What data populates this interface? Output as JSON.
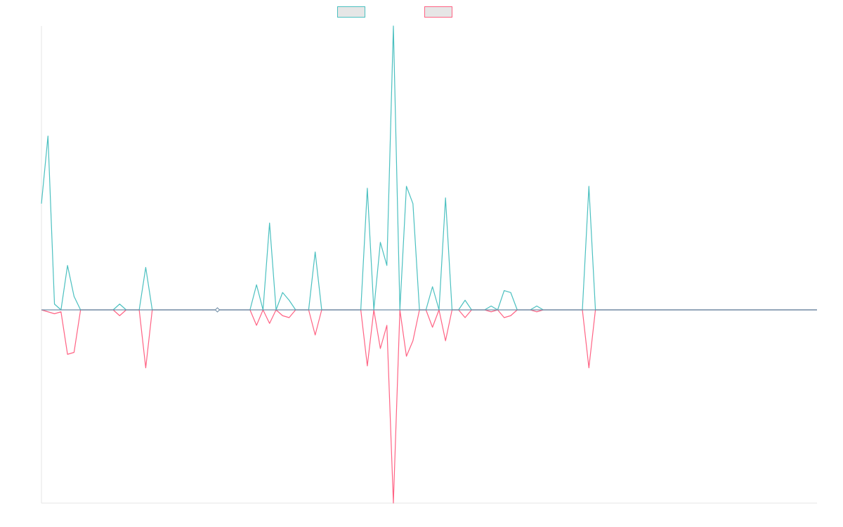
{
  "chart_data": {
    "type": "line",
    "title": "",
    "xlabel": "",
    "ylabel": "",
    "ylim": [
      -1,
      0.82
    ],
    "x_count": 120,
    "grid": false,
    "legend": "top",
    "series": [
      {
        "color": "#4bc0c0",
        "values": [
          0.55,
          0.9,
          0.03,
          0.0,
          0.23,
          0.07,
          0.0,
          0.0,
          0.0,
          0.0,
          0.0,
          0.0,
          0.03,
          0.0,
          0.0,
          0.0,
          0.22,
          0.0,
          0.0,
          0.0,
          0.0,
          0.0,
          0.0,
          0.0,
          0.0,
          0.0,
          0.0,
          0.0,
          0.0,
          0.0,
          0.0,
          0.0,
          0.0,
          0.13,
          0.0,
          0.45,
          0.0,
          0.09,
          0.05,
          0.0,
          0.0,
          0.0,
          0.3,
          0.0,
          0.0,
          0.0,
          0.0,
          0.0,
          0.0,
          0.0,
          0.63,
          0.0,
          0.35,
          0.23,
          1.47,
          0.0,
          0.64,
          0.55,
          0.0,
          0.0,
          0.12,
          0.0,
          0.58,
          0.0,
          0.0,
          0.05,
          0.0,
          0.0,
          0.0,
          0.02,
          0.0,
          0.1,
          0.09,
          0.0,
          0.0,
          0.0,
          0.02,
          0.0,
          0.0,
          0.0,
          0.0,
          0.0,
          0.0,
          0.0,
          0.64,
          0.0,
          0.0,
          0.0,
          0.0,
          0.0,
          0.0,
          0.0,
          0.0,
          0.0,
          0.0,
          0.0,
          0.0,
          0.0,
          0.0,
          0.0,
          0.0,
          0.0,
          0.0,
          0.0,
          0.0,
          0.0,
          0.0,
          0.0,
          0.0,
          0.0,
          0.0,
          0.0,
          0.0,
          0.0,
          0.0,
          0.0,
          0.0,
          0.0,
          0.0,
          0.0
        ]
      },
      {
        "color": "#ff6384",
        "values": [
          0.0,
          -0.01,
          -0.02,
          -0.01,
          -0.23,
          -0.22,
          0.0,
          0.0,
          0.0,
          0.0,
          0.0,
          0.0,
          -0.03,
          0.0,
          0.0,
          0.0,
          -0.3,
          0.0,
          0.0,
          0.0,
          0.0,
          0.0,
          0.0,
          0.0,
          0.0,
          0.0,
          0.0,
          0.0,
          0.0,
          0.0,
          0.0,
          0.0,
          0.0,
          -0.08,
          0.0,
          -0.07,
          0.0,
          -0.03,
          -0.04,
          0.0,
          0.0,
          0.0,
          -0.13,
          0.0,
          0.0,
          0.0,
          0.0,
          0.0,
          0.0,
          0.0,
          -0.29,
          0.0,
          -0.2,
          -0.08,
          -1.0,
          0.0,
          -0.24,
          -0.16,
          0.0,
          0.0,
          -0.09,
          0.0,
          -0.16,
          0.0,
          0.0,
          -0.04,
          0.0,
          0.0,
          0.0,
          -0.01,
          0.0,
          -0.04,
          -0.03,
          0.0,
          0.0,
          0.0,
          -0.01,
          0.0,
          0.0,
          0.0,
          0.0,
          0.0,
          0.0,
          0.0,
          -0.3,
          0.0,
          0.0,
          0.0,
          0.0,
          0.0,
          0.0,
          0.0,
          0.0,
          0.0,
          0.0,
          0.0,
          0.0,
          0.0,
          0.0,
          0.0,
          0.0,
          0.0,
          0.0,
          0.0,
          0.0,
          0.0,
          0.0,
          0.0,
          0.0,
          0.0,
          0.0,
          0.0,
          0.0,
          0.0,
          0.0,
          0.0,
          0.0,
          0.0,
          0.0,
          0.0
        ]
      }
    ]
  }
}
